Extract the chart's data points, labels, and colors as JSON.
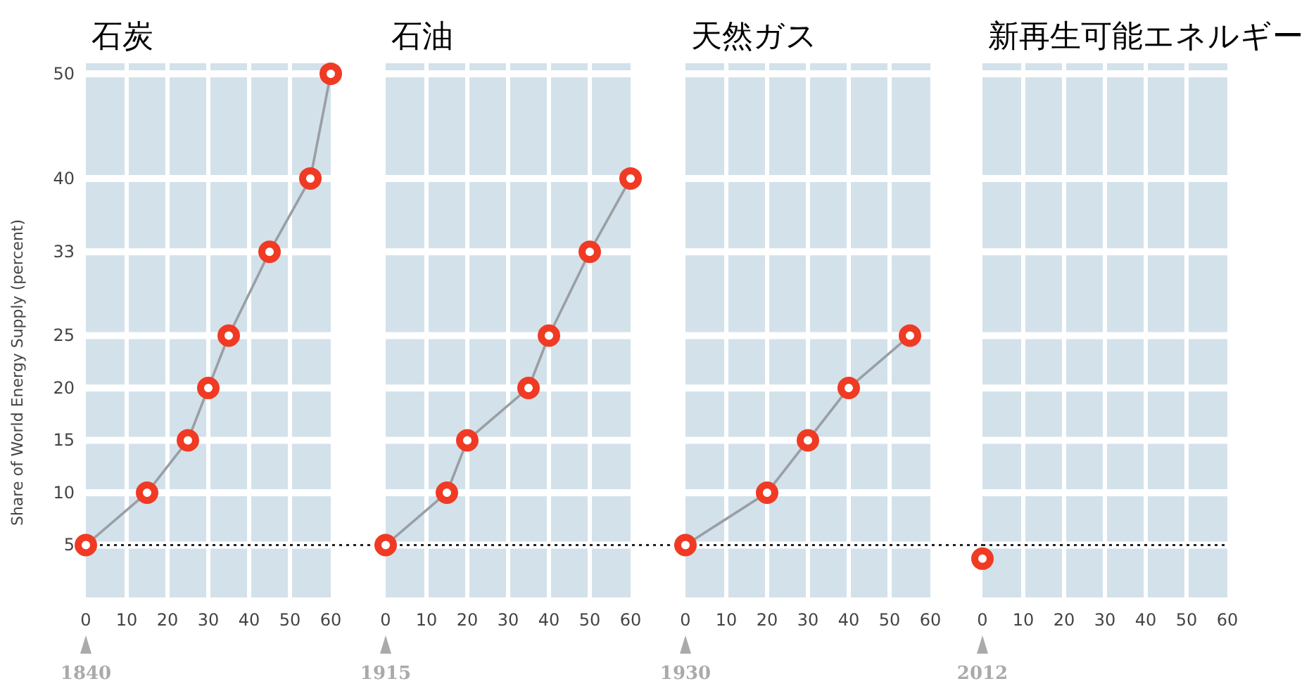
{
  "chart_data": [
    {
      "type": "line",
      "title": "石炭",
      "ylabel": "Share of World Energy Supply (percent)",
      "x": [
        0,
        15,
        25,
        30,
        35,
        45,
        55,
        60
      ],
      "values": [
        5,
        10,
        15,
        20,
        25,
        33,
        40,
        50
      ],
      "color": "#f03a24",
      "xlim": [
        0,
        60
      ],
      "xticks": [
        0,
        10,
        20,
        30,
        40,
        50,
        60
      ],
      "ylim": [
        0,
        51
      ],
      "yticks": [
        5,
        10,
        15,
        20,
        25,
        33,
        40,
        50
      ],
      "grid": true,
      "marker": "circle",
      "ref_lines": [
        {
          "axis": "y",
          "value": 5,
          "line_style": "dotted"
        }
      ],
      "annotations": [
        "1840"
      ]
    },
    {
      "type": "line",
      "title": "石油",
      "x": [
        0,
        15,
        20,
        35,
        40,
        50,
        60
      ],
      "values": [
        5,
        10,
        15,
        20,
        25,
        33,
        40
      ],
      "color": "#f03a24",
      "xlim": [
        0,
        60
      ],
      "xticks": [
        0,
        10,
        20,
        30,
        40,
        50,
        60
      ],
      "ylim": [
        0,
        51
      ],
      "yticks": [
        5,
        10,
        15,
        20,
        25,
        33,
        40,
        50
      ],
      "tick_labels": "x",
      "grid": true,
      "marker": "circle",
      "ref_lines": [
        {
          "axis": "y",
          "value": 5,
          "line_style": "dotted"
        }
      ],
      "annotations": [
        "1915"
      ]
    },
    {
      "type": "line",
      "title": "天然ガス",
      "x": [
        0,
        20,
        30,
        40,
        55
      ],
      "values": [
        5,
        10,
        15,
        20,
        25
      ],
      "color": "#f03a24",
      "xlim": [
        0,
        60
      ],
      "xticks": [
        0,
        10,
        20,
        30,
        40,
        50,
        60
      ],
      "ylim": [
        0,
        51
      ],
      "yticks": [
        5,
        10,
        15,
        20,
        25,
        33,
        40,
        50
      ],
      "tick_labels": "x",
      "grid": true,
      "marker": "circle",
      "ref_lines": [
        {
          "axis": "y",
          "value": 5,
          "line_style": "dotted"
        }
      ],
      "annotations": [
        "1930"
      ]
    },
    {
      "type": "line",
      "title": "新再生可能エネルギー",
      "x": [
        0
      ],
      "values": [
        3.7
      ],
      "color": "#f03a24",
      "xlim": [
        0,
        60
      ],
      "xticks": [
        0,
        10,
        20,
        30,
        40,
        50,
        60
      ],
      "ylim": [
        0,
        51
      ],
      "yticks": [
        5,
        10,
        15,
        20,
        25,
        33,
        40,
        50
      ],
      "tick_labels": "x",
      "grid": true,
      "marker": "circle",
      "ref_lines": [
        {
          "axis": "y",
          "value": 5,
          "line_style": "dotted"
        }
      ],
      "annotations": [
        "2012"
      ]
    }
  ]
}
